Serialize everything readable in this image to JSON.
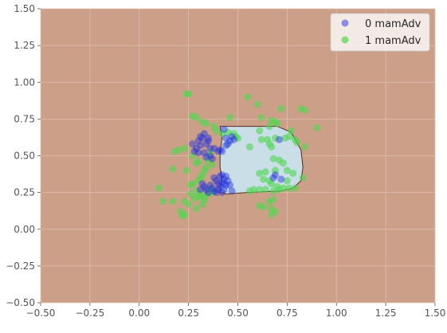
{
  "chart_data": {
    "type": "scatter",
    "title": "",
    "xlabel": "",
    "ylabel": "",
    "xlim": [
      -0.5,
      1.5
    ],
    "ylim": [
      -0.5,
      1.5
    ],
    "grid": true,
    "legend_position": "top-right",
    "x_ticks": [
      -0.5,
      -0.25,
      0.0,
      0.25,
      0.5,
      0.75,
      1.0,
      1.25,
      1.5
    ],
    "y_ticks": [
      -0.5,
      -0.25,
      0.0,
      0.25,
      0.5,
      0.75,
      1.0,
      1.25,
      1.5
    ],
    "x_tick_labels": [
      "−0.50",
      "−0.25",
      "0.00",
      "0.25",
      "0.50",
      "0.75",
      "1.00",
      "1.25",
      "1.50"
    ],
    "y_tick_labels": [
      "−0.50",
      "−0.25",
      "0.00",
      "0.25",
      "0.50",
      "0.75",
      "1.00",
      "1.25",
      "1.50"
    ],
    "colors": {
      "background_region": "#cca088",
      "decision_region": "#c9dee7",
      "decision_boundary": "#5a2a1e",
      "grid": "#dcc0ae",
      "class_0": "#1f2fe0",
      "class_1": "#4fd94f",
      "legend_bg": "#ffffff",
      "tick_text": "#555555"
    },
    "decision_region": [
      [
        0.41,
        0.7
      ],
      [
        0.7,
        0.7
      ],
      [
        0.77,
        0.66
      ],
      [
        0.82,
        0.54
      ],
      [
        0.83,
        0.42
      ],
      [
        0.82,
        0.33
      ],
      [
        0.78,
        0.28
      ],
      [
        0.72,
        0.26
      ],
      [
        0.55,
        0.25
      ],
      [
        0.44,
        0.24
      ],
      [
        0.41,
        0.25
      ],
      [
        0.42,
        0.35
      ],
      [
        0.41,
        0.42
      ],
      [
        0.41,
        0.52
      ],
      [
        0.42,
        0.62
      ],
      [
        0.41,
        0.7
      ]
    ],
    "series": [
      {
        "name": "0 mamAdv",
        "points": [
          [
            0.32,
            0.62
          ],
          [
            0.33,
            0.65
          ],
          [
            0.34,
            0.58
          ],
          [
            0.35,
            0.6
          ],
          [
            0.36,
            0.55
          ],
          [
            0.31,
            0.57
          ],
          [
            0.3,
            0.6
          ],
          [
            0.29,
            0.55
          ],
          [
            0.28,
            0.53
          ],
          [
            0.33,
            0.52
          ],
          [
            0.36,
            0.5
          ],
          [
            0.37,
            0.48
          ],
          [
            0.4,
            0.53
          ],
          [
            0.38,
            0.55
          ],
          [
            0.35,
            0.62
          ],
          [
            0.43,
            0.68
          ],
          [
            0.44,
            0.62
          ],
          [
            0.46,
            0.6
          ],
          [
            0.45,
            0.58
          ],
          [
            0.47,
            0.63
          ],
          [
            0.48,
            0.61
          ],
          [
            0.44,
            0.57
          ],
          [
            0.42,
            0.53
          ],
          [
            0.41,
            0.54
          ],
          [
            0.38,
            0.35
          ],
          [
            0.39,
            0.33
          ],
          [
            0.4,
            0.31
          ],
          [
            0.41,
            0.36
          ],
          [
            0.42,
            0.32
          ],
          [
            0.43,
            0.34
          ],
          [
            0.44,
            0.3
          ],
          [
            0.45,
            0.33
          ],
          [
            0.46,
            0.3
          ],
          [
            0.47,
            0.26
          ],
          [
            0.43,
            0.27
          ],
          [
            0.42,
            0.25
          ],
          [
            0.41,
            0.29
          ],
          [
            0.4,
            0.27
          ],
          [
            0.39,
            0.25
          ],
          [
            0.38,
            0.26
          ],
          [
            0.37,
            0.28
          ],
          [
            0.36,
            0.3
          ],
          [
            0.35,
            0.25
          ],
          [
            0.34,
            0.27
          ],
          [
            0.33,
            0.29
          ],
          [
            0.32,
            0.31
          ],
          [
            0.31,
            0.27
          ],
          [
            0.44,
            0.36
          ],
          [
            0.42,
            0.37
          ],
          [
            0.43,
            0.31
          ],
          [
            0.68,
            0.35
          ],
          [
            0.69,
            0.37
          ],
          [
            0.72,
            0.34
          ],
          [
            0.71,
            0.61
          ],
          [
            0.27,
            0.58
          ],
          [
            0.34,
            0.49
          ],
          [
            0.3,
            0.52
          ],
          [
            0.31,
            0.63
          ]
        ]
      },
      {
        "name": "1 mamAdv",
        "points": [
          [
            0.24,
            0.92
          ],
          [
            0.25,
            0.92
          ],
          [
            0.55,
            0.9
          ],
          [
            0.6,
            0.85
          ],
          [
            0.72,
            0.82
          ],
          [
            0.82,
            0.82
          ],
          [
            0.84,
            0.81
          ],
          [
            0.27,
            0.77
          ],
          [
            0.29,
            0.76
          ],
          [
            0.46,
            0.76
          ],
          [
            0.62,
            0.76
          ],
          [
            0.67,
            0.74
          ],
          [
            0.69,
            0.73
          ],
          [
            0.32,
            0.73
          ],
          [
            0.34,
            0.72
          ],
          [
            0.38,
            0.7
          ],
          [
            0.39,
            0.67
          ],
          [
            0.42,
            0.65
          ],
          [
            0.45,
            0.66
          ],
          [
            0.48,
            0.65
          ],
          [
            0.49,
            0.63
          ],
          [
            0.5,
            0.62
          ],
          [
            0.66,
            0.7
          ],
          [
            0.7,
            0.72
          ],
          [
            0.77,
            0.67
          ],
          [
            0.76,
            0.63
          ],
          [
            0.74,
            0.62
          ],
          [
            0.9,
            0.69
          ],
          [
            0.79,
            0.61
          ],
          [
            0.8,
            0.59
          ],
          [
            0.61,
            0.67
          ],
          [
            0.62,
            0.61
          ],
          [
            0.65,
            0.61
          ],
          [
            0.67,
            0.56
          ],
          [
            0.69,
            0.62
          ],
          [
            0.66,
            0.58
          ],
          [
            0.56,
            0.56
          ],
          [
            0.84,
            0.56
          ],
          [
            0.2,
            0.54
          ],
          [
            0.18,
            0.53
          ],
          [
            0.23,
            0.55
          ],
          [
            0.27,
            0.5
          ],
          [
            0.29,
            0.45
          ],
          [
            0.3,
            0.46
          ],
          [
            0.33,
            0.4
          ],
          [
            0.34,
            0.42
          ],
          [
            0.35,
            0.47
          ],
          [
            0.36,
            0.52
          ],
          [
            0.37,
            0.44
          ],
          [
            0.68,
            0.48
          ],
          [
            0.71,
            0.47
          ],
          [
            0.73,
            0.45
          ],
          [
            0.75,
            0.4
          ],
          [
            0.78,
            0.38
          ],
          [
            0.69,
            0.4
          ],
          [
            0.83,
            0.35
          ],
          [
            0.17,
            0.41
          ],
          [
            0.24,
            0.4
          ],
          [
            0.32,
            0.37
          ],
          [
            0.31,
            0.35
          ],
          [
            0.3,
            0.33
          ],
          [
            0.66,
            0.33
          ],
          [
            0.63,
            0.34
          ],
          [
            0.67,
            0.31
          ],
          [
            0.7,
            0.29
          ],
          [
            0.73,
            0.28
          ],
          [
            0.75,
            0.33
          ],
          [
            0.61,
            0.38
          ],
          [
            0.64,
            0.39
          ],
          [
            0.1,
            0.28
          ],
          [
            0.26,
            0.3
          ],
          [
            0.27,
            0.31
          ],
          [
            0.29,
            0.26
          ],
          [
            0.31,
            0.24
          ],
          [
            0.33,
            0.22
          ],
          [
            0.35,
            0.24
          ],
          [
            0.36,
            0.27
          ],
          [
            0.37,
            0.25
          ],
          [
            0.56,
            0.26
          ],
          [
            0.58,
            0.27
          ],
          [
            0.61,
            0.27
          ],
          [
            0.64,
            0.27
          ],
          [
            0.68,
            0.26
          ],
          [
            0.71,
            0.27
          ],
          [
            0.76,
            0.28
          ],
          [
            0.79,
            0.28
          ],
          [
            0.26,
            0.24
          ],
          [
            0.28,
            0.21
          ],
          [
            0.3,
            0.22
          ],
          [
            0.33,
            0.2
          ],
          [
            0.12,
            0.19
          ],
          [
            0.17,
            0.19
          ],
          [
            0.23,
            0.19
          ],
          [
            0.25,
            0.17
          ],
          [
            0.32,
            0.17
          ],
          [
            0.66,
            0.19
          ],
          [
            0.68,
            0.2
          ],
          [
            0.61,
            0.16
          ],
          [
            0.63,
            0.15
          ],
          [
            0.67,
            0.14
          ],
          [
            0.69,
            0.12
          ],
          [
            0.67,
            0.1
          ],
          [
            0.21,
            0.12
          ],
          [
            0.22,
            0.09
          ],
          [
            0.23,
            0.1
          ],
          [
            0.29,
            0.14
          ]
        ]
      }
    ]
  }
}
